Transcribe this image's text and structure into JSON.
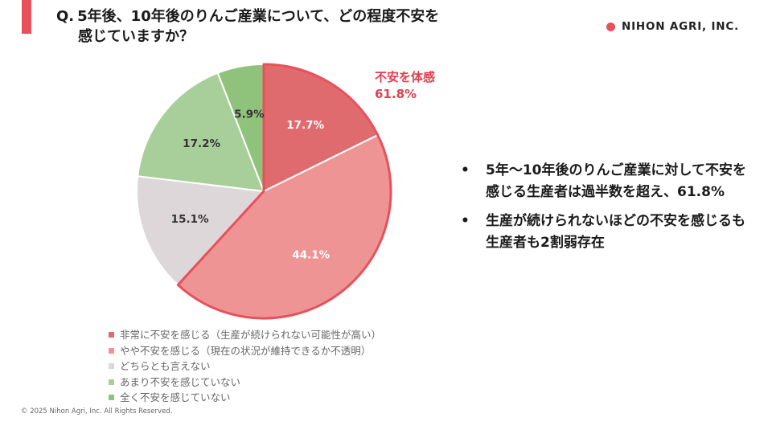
{
  "header": {
    "question_label": "Q.",
    "question_line1": "5年後、10年後のりんご産業について、どの程度不安を",
    "question_line2": "感じていますか？",
    "accent_color": "#e8505b"
  },
  "logo": {
    "text": "NIHON AGRI, INC.",
    "dot_color": "#e8505b"
  },
  "callout": {
    "line1": "不安を体感",
    "line2": "61.8%",
    "color": "#e0404f"
  },
  "summary": {
    "bullet": "•",
    "items": [
      "5年～10年後のりんご産業に対して不安を感じる生産者は過半数を超え、61.8%",
      "生産が続けられないほどの不安を感じるも生産者も2割弱存在"
    ]
  },
  "footer": {
    "copyright": "© 2025 Nihon Agri, Inc. All Rights Reserved."
  },
  "chart_data": {
    "type": "pie",
    "start_angle_deg": 0,
    "direction": "clockwise",
    "highlight_color": "#e8505b",
    "legend_position": "bottom-left",
    "slices": [
      {
        "label": "非常に不安を感じる（生産が続けられない可能性が高い）",
        "value": 17.7,
        "display": "17.7%",
        "color": "#e06b6e",
        "highlight": true
      },
      {
        "label": "やや不安を感じる（現在の状況が維持できるか不透明）",
        "value": 44.1,
        "display": "44.1%",
        "color": "#ef9494",
        "highlight": true
      },
      {
        "label": "どちらとも言えない",
        "value": 15.1,
        "display": "15.1%",
        "color": "#ddd7da",
        "highlight": false
      },
      {
        "label": "あまり不安を感じていない",
        "value": 17.2,
        "display": "17.2%",
        "color": "#a8cf9a",
        "highlight": false
      },
      {
        "label": "全く不安を感じていない",
        "value": 5.9,
        "display": "5.9%",
        "color": "#8fc27b",
        "highlight": false
      }
    ]
  }
}
